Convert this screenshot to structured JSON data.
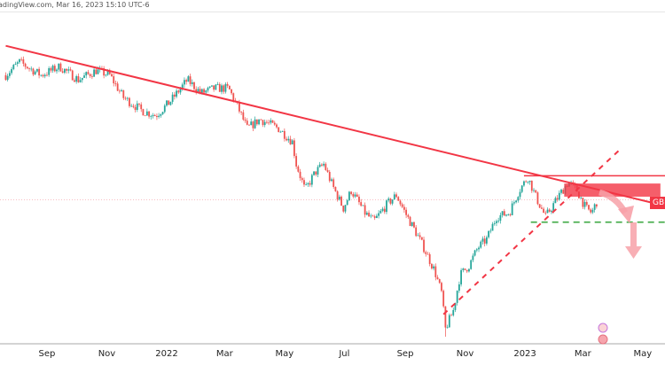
{
  "header": {
    "source_text": "adingView.com, Mar 16, 2023 15:10 UTC-6"
  },
  "price_label": "GB",
  "colors": {
    "up": "#26a69a",
    "down": "#ef5350",
    "trendline": "#f23645",
    "support": "#4caf50",
    "arrow": "#f7a1a8"
  },
  "chart_data": {
    "type": "candlestick",
    "title": "",
    "x_ticks": [
      {
        "date": "2021-09-01",
        "label": "Sep"
      },
      {
        "date": "2021-11-01",
        "label": "Nov"
      },
      {
        "date": "2022-01-01",
        "label": "2022"
      },
      {
        "date": "2022-03-01",
        "label": "Mar"
      },
      {
        "date": "2022-05-01",
        "label": "May"
      },
      {
        "date": "2022-07-01",
        "label": "Jul"
      },
      {
        "date": "2022-09-01",
        "label": "Sep"
      },
      {
        "date": "2022-11-01",
        "label": "Nov"
      },
      {
        "date": "2023-01-01",
        "label": "2023"
      },
      {
        "date": "2023-03-01",
        "label": "Mar"
      },
      {
        "date": "2023-05-01",
        "label": "May"
      }
    ],
    "x_range": [
      "2021-07-21",
      "2023-06-03"
    ],
    "y_range_approx": [
      1.02,
      1.43
    ],
    "price_path": [
      [
        "2021-07-21",
        1.373
      ],
      [
        "2021-08-04",
        1.39
      ],
      [
        "2021-08-26",
        1.373
      ],
      [
        "2021-09-14",
        1.384
      ],
      [
        "2021-10-03",
        1.367
      ],
      [
        "2021-10-21",
        1.379
      ],
      [
        "2021-11-04",
        1.373
      ],
      [
        "2021-11-18",
        1.344
      ],
      [
        "2021-12-07",
        1.327
      ],
      [
        "2021-12-21",
        1.321
      ],
      [
        "2022-01-04",
        1.338
      ],
      [
        "2022-01-22",
        1.367
      ],
      [
        "2022-02-05",
        1.35
      ],
      [
        "2022-02-19",
        1.356
      ],
      [
        "2022-03-05",
        1.356
      ],
      [
        "2022-03-14",
        1.333
      ],
      [
        "2022-03-24",
        1.304
      ],
      [
        "2022-04-06",
        1.316
      ],
      [
        "2022-04-25",
        1.304
      ],
      [
        "2022-05-09",
        1.287
      ],
      [
        "2022-05-13",
        1.258
      ],
      [
        "2022-05-22",
        1.224
      ],
      [
        "2022-06-01",
        1.247
      ],
      [
        "2022-06-10",
        1.258
      ],
      [
        "2022-06-19",
        1.23
      ],
      [
        "2022-06-30",
        1.201
      ],
      [
        "2022-07-08",
        1.224
      ],
      [
        "2022-07-22",
        1.195
      ],
      [
        "2022-07-31",
        1.184
      ],
      [
        "2022-08-14",
        1.207
      ],
      [
        "2022-08-23",
        1.218
      ],
      [
        "2022-09-01",
        1.195
      ],
      [
        "2022-09-11",
        1.172
      ],
      [
        "2022-09-20",
        1.15
      ],
      [
        "2022-10-01",
        1.12
      ],
      [
        "2022-10-08",
        1.092
      ],
      [
        "2022-10-12",
        1.045
      ],
      [
        "2022-10-20",
        1.069
      ],
      [
        "2022-10-27",
        1.115
      ],
      [
        "2022-11-05",
        1.127
      ],
      [
        "2022-11-14",
        1.15
      ],
      [
        "2022-11-23",
        1.161
      ],
      [
        "2022-12-03",
        1.19
      ],
      [
        "2022-12-16",
        1.195
      ],
      [
        "2022-12-26",
        1.224
      ],
      [
        "2023-01-04",
        1.241
      ],
      [
        "2023-01-13",
        1.213
      ],
      [
        "2023-01-22",
        1.19
      ],
      [
        "2023-02-05",
        1.218
      ],
      [
        "2023-02-14",
        1.235
      ],
      [
        "2023-02-23",
        1.224
      ],
      [
        "2023-03-04",
        1.201
      ],
      [
        "2023-03-10",
        1.195
      ],
      [
        "2023-03-16",
        1.212
      ]
    ],
    "spike_low": {
      "date": "2022-10-12",
      "price": 1.035
    },
    "current_price": 1.212,
    "drawings": {
      "downtrend_line": [
        [
          "2021-07-21",
          1.411
        ],
        [
          "2023-06-03",
          1.201
        ]
      ],
      "resistance_line": {
        "from": "2022-12-31",
        "price": 1.243
      },
      "resistance_zone": {
        "from": "2023-02-10",
        "to": "2023-05-19",
        "top": 1.233,
        "bottom": 1.216
      },
      "support_line": {
        "from": "2023-01-07",
        "price": 1.183
      },
      "uptrend_dashed": [
        [
          "2022-10-10",
          1.064
        ],
        [
          "2023-04-07",
          1.276
        ]
      ]
    }
  }
}
